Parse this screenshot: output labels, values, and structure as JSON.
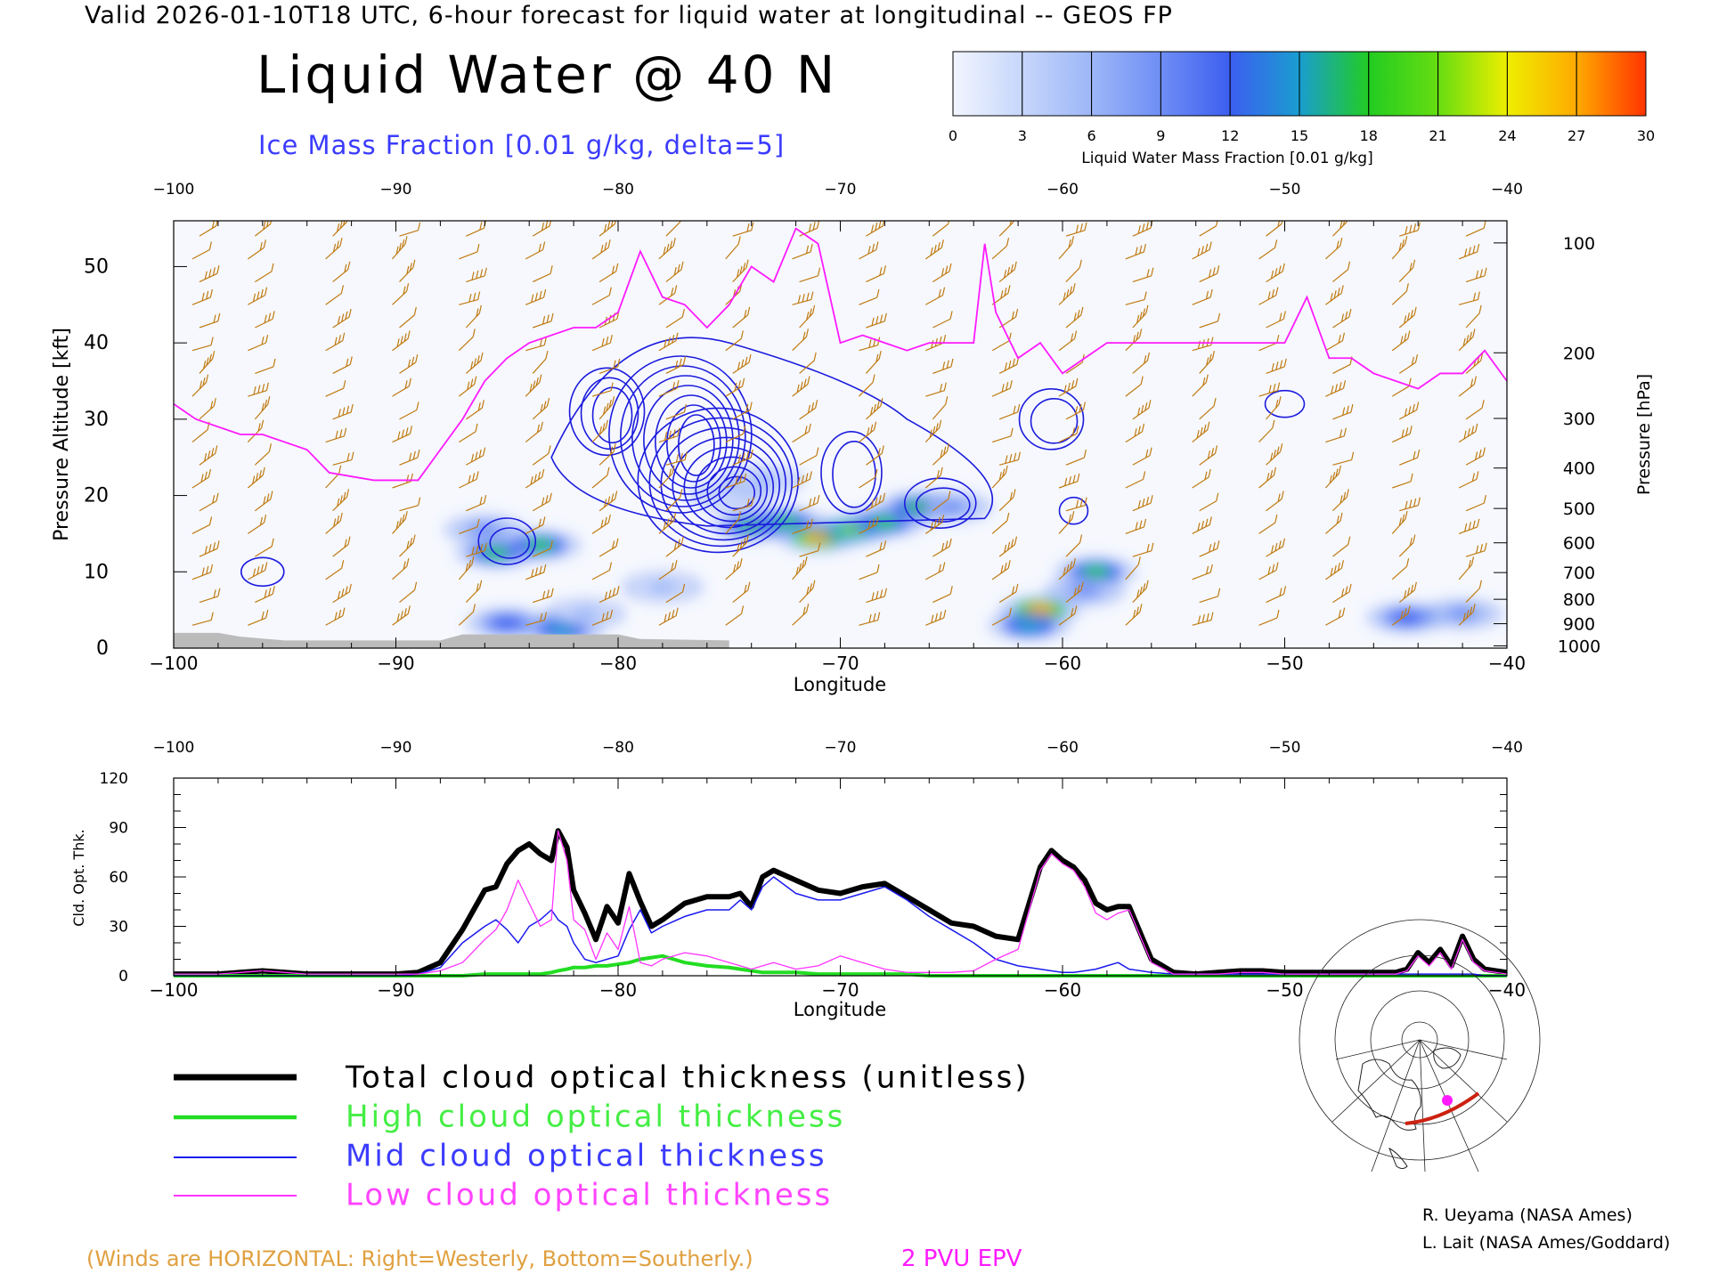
{
  "header": {
    "title": "Valid 2026-01-10T18 UTC, 6-hour forecast for liquid water at longitudinal -- GEOS FP",
    "main_title": "Liquid Water @ 40 N",
    "subtitle": "Ice Mass Fraction [0.01 g/kg, delta=5]"
  },
  "colors": {
    "subtitle": "#3b3bff",
    "wind_barb": "#c07a10",
    "epv": "#ff1aff",
    "total": "#000000",
    "high": "#22dd22",
    "mid": "#1a1aee",
    "low": "#ff33ff",
    "footnote": "#e0a040",
    "epv_label": "#ff1aff",
    "ice_contour": "#1b1bdd",
    "terrain": "#bbbbbb"
  },
  "colorbar": {
    "label": "Liquid Water Mass Fraction [0.01 g/kg]",
    "ticks": [
      "0",
      "3",
      "6",
      "9",
      "12",
      "15",
      "18",
      "21",
      "24",
      "27",
      "30"
    ],
    "colors": [
      "#f2f5ff",
      "#c6d6fb",
      "#9db7f7",
      "#6f8ef5",
      "#3c5ef0",
      "#1a9dd0",
      "#22cc22",
      "#66dd11",
      "#eeee00",
      "#ffaa00",
      "#ff3300"
    ]
  },
  "chart_data": [
    {
      "type": "heatmap",
      "title": "Liquid Water @ 40 N",
      "xlabel": "Longitude",
      "ylabel": "Pressure Altitude [kft]",
      "ylabel_right": "Pressure [hPa]",
      "xlim": [
        -100,
        -40
      ],
      "ylim": [
        0,
        56
      ],
      "x_ticks": [
        "-100",
        "-90",
        "-80",
        "-70",
        "-60",
        "-50",
        "-40"
      ],
      "y_ticks": [
        "0",
        "10",
        "20",
        "30",
        "40",
        "50"
      ],
      "pressure_ticks": [
        {
          "label": "100",
          "kft": 53.1
        },
        {
          "label": "200",
          "kft": 38.7
        },
        {
          "label": "300",
          "kft": 30.1
        },
        {
          "label": "400",
          "kft": 23.6
        },
        {
          "label": "500",
          "kft": 18.3
        },
        {
          "label": "600",
          "kft": 13.8
        },
        {
          "label": "700",
          "kft": 9.9
        },
        {
          "label": "800",
          "kft": 6.4
        },
        {
          "label": "900",
          "kft": 3.2
        },
        {
          "label": "1000",
          "kft": 0.3
        }
      ],
      "liquid_water_blobs": [
        {
          "lon": -85.5,
          "kft": 12.5,
          "value": 17
        },
        {
          "lon": -83.5,
          "kft": 13.5,
          "value": 17
        },
        {
          "lon": -85,
          "kft": 3.3,
          "value": 12
        },
        {
          "lon": -82.5,
          "kft": 2.5,
          "value": 15
        },
        {
          "lon": -86,
          "kft": 15.5,
          "value": 10
        },
        {
          "lon": -81.5,
          "kft": 4.5,
          "value": 6
        },
        {
          "lon": -78,
          "kft": 8,
          "value": 6
        },
        {
          "lon": -74,
          "kft": 16,
          "value": 18
        },
        {
          "lon": -72.5,
          "kft": 16.5,
          "value": 19
        },
        {
          "lon": -71,
          "kft": 14.5,
          "value": 26
        },
        {
          "lon": -69.5,
          "kft": 15.5,
          "value": 20
        },
        {
          "lon": -68,
          "kft": 16.5,
          "value": 17
        },
        {
          "lon": -66.5,
          "kft": 18.5,
          "value": 18
        },
        {
          "lon": -65,
          "kft": 18.5,
          "value": 8
        },
        {
          "lon": -61,
          "kft": 5,
          "value": 27
        },
        {
          "lon": -61.5,
          "kft": 3,
          "value": 15
        },
        {
          "lon": -58.5,
          "kft": 10,
          "value": 18
        },
        {
          "lon": -59,
          "kft": 7.5,
          "value": 8
        },
        {
          "lon": -44.5,
          "kft": 4,
          "value": 12
        },
        {
          "lon": -42,
          "kft": 4.5,
          "value": 8
        },
        {
          "lon": -75,
          "kft": 20,
          "value": 4
        },
        {
          "lon": -73.5,
          "kft": 22,
          "value": 5
        }
      ],
      "epv_2pvu_line": {
        "lon": [
          -100,
          -99,
          -97,
          -96,
          -94,
          -93,
          -91,
          -90,
          -89,
          -88,
          -87,
          -86,
          -85,
          -84,
          -83,
          -82,
          -81,
          -80,
          -79,
          -78,
          -77,
          -76,
          -75,
          -74,
          -73,
          -72,
          -71,
          -70,
          -69,
          -68,
          -67,
          -66,
          -65,
          -64,
          -63.5,
          -63,
          -62,
          -61,
          -60,
          -59,
          -58,
          -57,
          -56,
          -55,
          -54,
          -53,
          -52,
          -51,
          -50,
          -49,
          -48,
          -47,
          -46,
          -45,
          -44,
          -43,
          -42,
          -41,
          -40
        ],
        "kft": [
          32,
          30,
          28,
          28,
          26,
          23,
          22,
          22,
          22,
          26,
          30,
          35,
          38,
          40,
          41,
          42,
          42,
          44,
          52,
          46,
          45,
          42,
          45,
          50,
          48,
          55,
          53,
          40,
          41,
          40,
          39,
          40,
          40,
          40,
          53,
          44,
          38,
          40,
          36,
          38,
          40,
          40,
          40,
          40,
          40,
          40,
          40,
          40,
          40,
          46,
          38,
          38,
          36,
          35,
          34,
          36,
          36,
          39,
          35
        ]
      },
      "wind_barb_columns_lon": [
        -99,
        -96.5,
        -93,
        -90,
        -87,
        -84,
        -81,
        -78,
        -75,
        -72,
        -69,
        -66,
        -63,
        -60,
        -57,
        -54,
        -51,
        -48,
        -45,
        -42
      ]
    },
    {
      "type": "line",
      "xlabel": "Longitude",
      "ylabel": "Cld. Opt. Thk.",
      "xlim": [
        -100,
        -40
      ],
      "ylim": [
        0,
        120
      ],
      "x_ticks": [
        "-100",
        "-90",
        "-80",
        "-70",
        "-60",
        "-50",
        "-40"
      ],
      "y_ticks": [
        "0",
        "30",
        "60",
        "90",
        "120"
      ],
      "x": [
        -100,
        -99,
        -98,
        -97,
        -96,
        -95,
        -94,
        -93,
        -92,
        -91,
        -90,
        -89,
        -88,
        -87,
        -86,
        -85.5,
        -85,
        -84.5,
        -84,
        -83.5,
        -83,
        -82.7,
        -82.3,
        -82,
        -81.5,
        -81,
        -80.5,
        -80,
        -79.5,
        -79,
        -78.5,
        -78,
        -77,
        -76,
        -75,
        -74.5,
        -74,
        -73.5,
        -73,
        -72,
        -71,
        -70,
        -69,
        -68,
        -67,
        -66,
        -65,
        -64,
        -63,
        -62,
        -61,
        -60.5,
        -60,
        -59.5,
        -59,
        -58.5,
        -58,
        -57.5,
        -57,
        -56,
        -55,
        -54,
        -53,
        -52,
        -51,
        -50,
        -49,
        -48,
        -47,
        -46,
        -45,
        -44.5,
        -44,
        -43.5,
        -43,
        -42.5,
        -42,
        -41.5,
        -41,
        -40
      ],
      "series": [
        {
          "name": "Total cloud optical thickness (unitless)",
          "color": "#000000",
          "values": [
            1,
            1,
            1,
            2,
            3,
            2,
            1,
            1,
            1,
            1,
            1,
            2,
            8,
            28,
            52,
            54,
            68,
            76,
            80,
            74,
            70,
            88,
            78,
            52,
            38,
            22,
            42,
            32,
            62,
            45,
            30,
            34,
            44,
            48,
            48,
            50,
            42,
            60,
            64,
            58,
            52,
            50,
            54,
            56,
            48,
            40,
            32,
            30,
            24,
            22,
            66,
            76,
            70,
            66,
            58,
            44,
            40,
            42,
            42,
            10,
            2,
            1,
            2,
            3,
            3,
            2,
            2,
            2,
            2,
            2,
            2,
            4,
            14,
            8,
            16,
            6,
            24,
            10,
            4,
            2
          ]
        },
        {
          "name": "High cloud optical thickness",
          "color": "#22dd22",
          "values": [
            0,
            0,
            0,
            0,
            0,
            0,
            0,
            0,
            0,
            0,
            0,
            0,
            0,
            0,
            1,
            1,
            1,
            1,
            1,
            1,
            2,
            3,
            4,
            5,
            5,
            6,
            6,
            7,
            8,
            10,
            11,
            12,
            8,
            6,
            5,
            4,
            3,
            2,
            2,
            2,
            1,
            1,
            1,
            1,
            1,
            0,
            0,
            0,
            0,
            0,
            0,
            0,
            0,
            0,
            0,
            0,
            0,
            0,
            0,
            0,
            0,
            0,
            0,
            0,
            0,
            0,
            0,
            0,
            0,
            0,
            0,
            0,
            0,
            0,
            0,
            0,
            0,
            0,
            0,
            0
          ]
        },
        {
          "name": "Mid cloud optical thickness",
          "color": "#1a1aee",
          "values": [
            0,
            0,
            0,
            0,
            0,
            0,
            0,
            0,
            0,
            0,
            0,
            1,
            5,
            20,
            30,
            34,
            28,
            20,
            30,
            34,
            40,
            34,
            30,
            20,
            10,
            8,
            10,
            12,
            28,
            40,
            26,
            30,
            36,
            40,
            40,
            46,
            40,
            54,
            60,
            50,
            46,
            46,
            50,
            54,
            46,
            36,
            28,
            20,
            10,
            6,
            4,
            3,
            2,
            2,
            3,
            4,
            6,
            8,
            4,
            2,
            1,
            1,
            1,
            1,
            1,
            1,
            1,
            1,
            1,
            1,
            1,
            1,
            1,
            1,
            1,
            1,
            1,
            1,
            0,
            0
          ]
        },
        {
          "name": "Low cloud optical thickness",
          "color": "#ff33ff",
          "values": [
            1,
            1,
            1,
            2,
            3,
            2,
            1,
            1,
            1,
            1,
            1,
            1,
            3,
            8,
            22,
            28,
            40,
            58,
            44,
            30,
            34,
            88,
            70,
            34,
            28,
            10,
            26,
            16,
            42,
            8,
            6,
            10,
            14,
            12,
            8,
            6,
            4,
            6,
            8,
            4,
            6,
            12,
            8,
            4,
            2,
            2,
            2,
            3,
            10,
            16,
            64,
            74,
            68,
            64,
            54,
            38,
            34,
            38,
            40,
            8,
            1,
            1,
            1,
            2,
            2,
            1,
            1,
            1,
            1,
            1,
            1,
            3,
            12,
            6,
            14,
            4,
            22,
            8,
            3,
            1
          ]
        }
      ]
    }
  ],
  "legend": {
    "total": "Total cloud optical thickness (unitless)",
    "high": "High cloud optical thickness",
    "mid": "Mid cloud optical thickness",
    "low": "Low cloud optical thickness"
  },
  "footer": {
    "winds_note": "(Winds are HORIZONTAL: Right=Westerly, Bottom=Southerly.)",
    "epv_label": "2 PVU EPV",
    "credit1": "R. Ueyama (NASA Ames)",
    "credit2": "L. Lait (NASA Ames/Goddard)"
  }
}
